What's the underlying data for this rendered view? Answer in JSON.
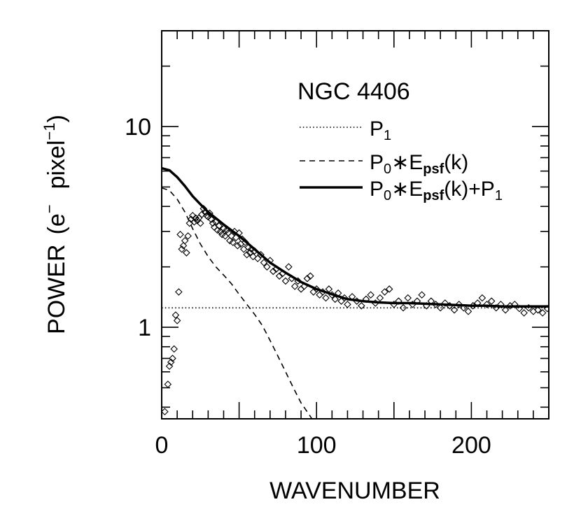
{
  "chart_data": {
    "type": "scatter",
    "title": "NGC 4406",
    "xlabel": "WAVENUMBER",
    "ylabel": {
      "prefix": "POWER",
      "open": "(e",
      "sup1": "−",
      "mid": "pixel",
      "sup2": "−1",
      "close": ")"
    },
    "xscale": "linear",
    "yscale": "log",
    "xlim": [
      0,
      250
    ],
    "ylim": [
      0.35,
      30
    ],
    "x_ticks_major": [
      0,
      100,
      200
    ],
    "x_tick_labels": [
      "0",
      "100",
      "200"
    ],
    "y_tick_labels": [
      {
        "value": 1,
        "label": "1"
      },
      {
        "value": 10,
        "label": "10"
      }
    ],
    "grid": false,
    "legend": {
      "position": "top-right",
      "entries": [
        {
          "style": "dotted",
          "main": "P",
          "sub": "1",
          "tail": ""
        },
        {
          "style": "dashed",
          "main": "P",
          "sub": "0",
          "mid": "∗E",
          "sub2": "psf",
          "tail": "(k)"
        },
        {
          "style": "solid",
          "main": "P",
          "sub": "0",
          "mid": "∗E",
          "sub2": "psf",
          "tail": "(k)+P",
          "sub3": "1"
        }
      ]
    },
    "series": [
      {
        "style": "dotted",
        "x": [
          0,
          250
        ],
        "values": [
          1.25,
          1.25
        ]
      },
      {
        "style": "dashed",
        "x": [
          0,
          5,
          10,
          15,
          20,
          25,
          30,
          35,
          40,
          45,
          50,
          55,
          60,
          65,
          70,
          75,
          80,
          85,
          90,
          95,
          97
        ],
        "values": [
          4.95,
          4.8,
          4.35,
          3.75,
          3.1,
          2.6,
          2.25,
          2.0,
          1.82,
          1.65,
          1.46,
          1.3,
          1.16,
          1.02,
          0.86,
          0.72,
          0.6,
          0.5,
          0.42,
          0.37,
          0.35
        ]
      },
      {
        "style": "solid",
        "x": [
          0,
          5,
          10,
          15,
          20,
          25,
          30,
          40,
          50,
          60,
          70,
          80,
          90,
          100,
          110,
          120,
          130,
          140,
          150,
          160,
          170,
          180,
          190,
          200,
          210,
          220,
          230,
          240,
          250
        ],
        "values": [
          6.2,
          6.05,
          5.6,
          5.05,
          4.5,
          4.1,
          3.75,
          3.25,
          2.85,
          2.45,
          2.1,
          1.87,
          1.68,
          1.55,
          1.46,
          1.38,
          1.35,
          1.33,
          1.32,
          1.32,
          1.31,
          1.3,
          1.29,
          1.28,
          1.28,
          1.27,
          1.27,
          1.27,
          1.27
        ]
      },
      {
        "style": "markers",
        "marker": "diamond",
        "x": [
          2,
          4,
          5,
          6,
          7,
          8,
          9,
          10,
          11,
          12,
          13,
          14,
          15,
          16,
          17,
          18,
          19,
          20,
          21,
          22,
          23,
          24,
          25,
          26,
          27,
          28,
          29,
          30,
          31,
          32,
          33,
          34,
          35,
          36,
          37,
          38,
          39,
          40,
          41,
          42,
          43,
          44,
          45,
          46,
          47,
          48,
          49,
          50,
          51,
          52,
          53,
          54,
          55,
          56,
          57,
          58,
          59,
          60,
          62,
          64,
          66,
          68,
          70,
          72,
          74,
          76,
          78,
          80,
          82,
          84,
          86,
          88,
          90,
          92,
          94,
          96,
          98,
          100,
          102,
          104,
          106,
          108,
          110,
          112,
          114,
          116,
          118,
          120,
          123,
          126,
          129,
          132,
          135,
          138,
          141,
          144,
          147,
          150,
          153,
          156,
          159,
          162,
          165,
          168,
          171,
          174,
          177,
          180,
          183,
          186,
          189,
          192,
          195,
          198,
          201,
          204,
          207,
          210,
          213,
          216,
          219,
          222,
          225,
          228,
          231,
          234,
          237,
          240,
          243,
          246,
          249
        ],
        "values": [
          0.38,
          0.52,
          0.64,
          0.67,
          0.7,
          0.78,
          1.15,
          1.08,
          1.5,
          2.9,
          2.45,
          2.55,
          2.7,
          2.35,
          2.85,
          3.3,
          3.45,
          3.6,
          3.35,
          3.5,
          3.4,
          3.5,
          3.3,
          3.65,
          3.9,
          3.75,
          3.6,
          3.55,
          3.7,
          3.45,
          3.3,
          3.15,
          3.35,
          3.05,
          3.2,
          3.0,
          2.9,
          3.1,
          2.85,
          3.05,
          2.95,
          2.7,
          2.85,
          2.65,
          3.0,
          2.8,
          2.55,
          2.95,
          2.6,
          2.75,
          2.45,
          2.65,
          2.3,
          2.5,
          2.35,
          2.45,
          2.25,
          2.4,
          2.2,
          2.3,
          2.1,
          2.0,
          2.15,
          1.9,
          1.95,
          1.8,
          1.85,
          1.7,
          2.0,
          1.75,
          1.6,
          1.7,
          1.55,
          1.6,
          1.75,
          1.8,
          1.5,
          1.55,
          1.45,
          1.5,
          1.4,
          1.55,
          1.45,
          1.38,
          1.48,
          1.35,
          1.4,
          1.3,
          1.42,
          1.35,
          1.28,
          1.38,
          1.45,
          1.32,
          1.4,
          1.5,
          1.55,
          1.3,
          1.35,
          1.25,
          1.4,
          1.3,
          1.35,
          1.45,
          1.28,
          1.35,
          1.3,
          1.25,
          1.32,
          1.28,
          1.22,
          1.3,
          1.25,
          1.2,
          1.28,
          1.32,
          1.4,
          1.3,
          1.35,
          1.25,
          1.3,
          1.22,
          1.28,
          1.3,
          1.24,
          1.18,
          1.25,
          1.2,
          1.22,
          1.18,
          1.24
        ]
      }
    ]
  }
}
